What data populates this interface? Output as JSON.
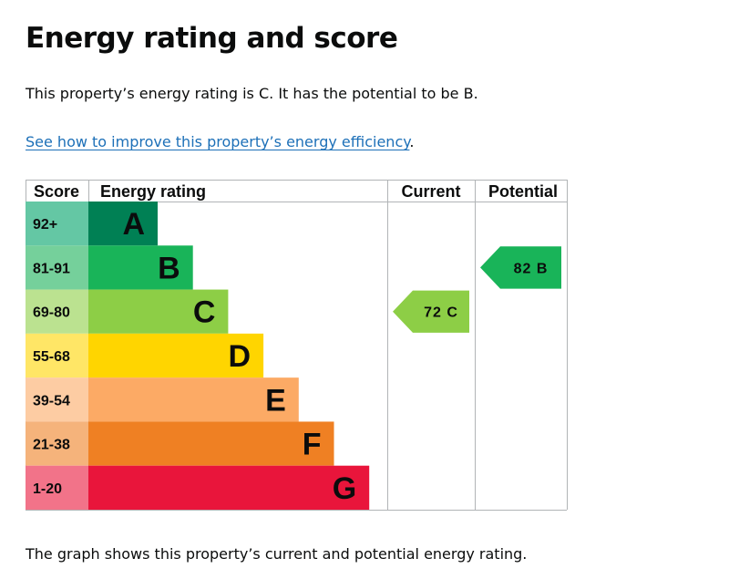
{
  "page": {
    "title": "Energy rating and score",
    "summary": "This property’s energy rating is C. It has the potential to be B.",
    "link_text": "See how to improve this property’s energy efficiency",
    "link_suffix": ".",
    "footer": "The graph shows this property’s current and potential energy rating."
  },
  "chart_data": {
    "type": "bar",
    "headers": {
      "score": "Score",
      "rating": "Energy rating",
      "current": "Current",
      "potential": "Potential"
    },
    "bands": [
      {
        "letter": "A",
        "range": "92+",
        "color": "#008054",
        "score_color": "#64c7a4"
      },
      {
        "letter": "B",
        "range": "81-91",
        "color": "#19b459",
        "score_color": "#75d09b"
      },
      {
        "letter": "C",
        "range": "69-80",
        "color": "#8dce46",
        "score_color": "#bbe290"
      },
      {
        "letter": "D",
        "range": "55-68",
        "color": "#ffd500",
        "score_color": "#ffe666"
      },
      {
        "letter": "E",
        "range": "39-54",
        "color": "#fcaa65",
        "score_color": "#fdccA3"
      },
      {
        "letter": "F",
        "range": "21-38",
        "color": "#ef8023",
        "score_color": "#f5b37b"
      },
      {
        "letter": "G",
        "range": "1-20",
        "color": "#e9153b",
        "score_color": "#f27389"
      }
    ],
    "current": {
      "score": 72,
      "letter": "C",
      "label": "72 C",
      "color": "#8dce46"
    },
    "potential": {
      "score": 82,
      "letter": "B",
      "label": "82 B",
      "color": "#19b459"
    }
  }
}
